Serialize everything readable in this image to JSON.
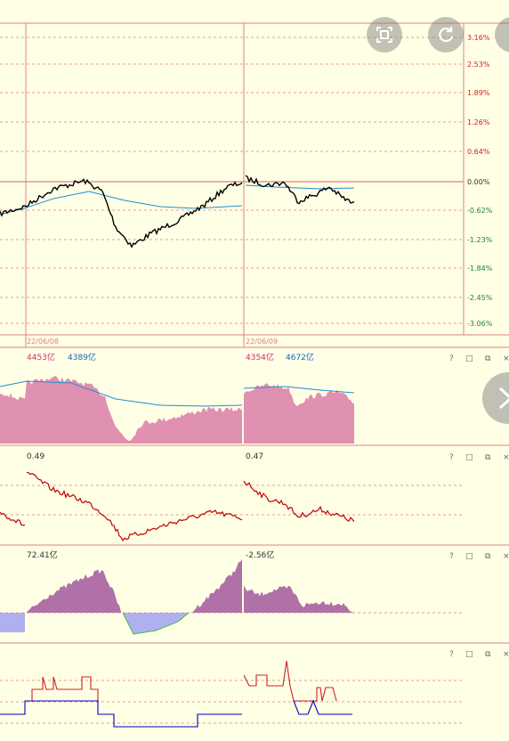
{
  "colors": {
    "background": "#ffffe6",
    "grid": "#e08080",
    "price_line": "#000000",
    "avg_line": "#1f8fd0",
    "red_text": "#d02020",
    "green_text": "#208040",
    "volume_fill": "#e090b0",
    "flow_positive": "#b070a8",
    "flow_negative": "#b0b0f0",
    "indicator_red": "#c00000",
    "indicator_blue": "#0000c0"
  },
  "price_panel": {
    "right_labels": [
      "3.16%",
      "2.53%",
      "1.89%",
      "1.26%",
      "0.64%",
      "0.00%",
      "-0.62%",
      "-1.23%",
      "-1.84%",
      "-2.45%",
      "-3.06%"
    ],
    "dates": [
      "22/06/08",
      "22/06/09"
    ]
  },
  "volume_panel": {
    "day1": {
      "val1": "4453亿",
      "val2": "4389亿"
    },
    "day2": {
      "val1": "4354亿",
      "val2": "4672亿"
    }
  },
  "ratio_panel": {
    "day1": "0.49",
    "day2": "0.47"
  },
  "flow_panel": {
    "day1": "72.41亿",
    "day2": "-2.56亿"
  },
  "panel_controls": [
    "?",
    "□",
    "⧉",
    "×"
  ],
  "overlay": {
    "fullscreen_icon": "fullscreen-icon",
    "refresh_icon": "refresh-icon",
    "close_icon": "close-icon"
  }
}
